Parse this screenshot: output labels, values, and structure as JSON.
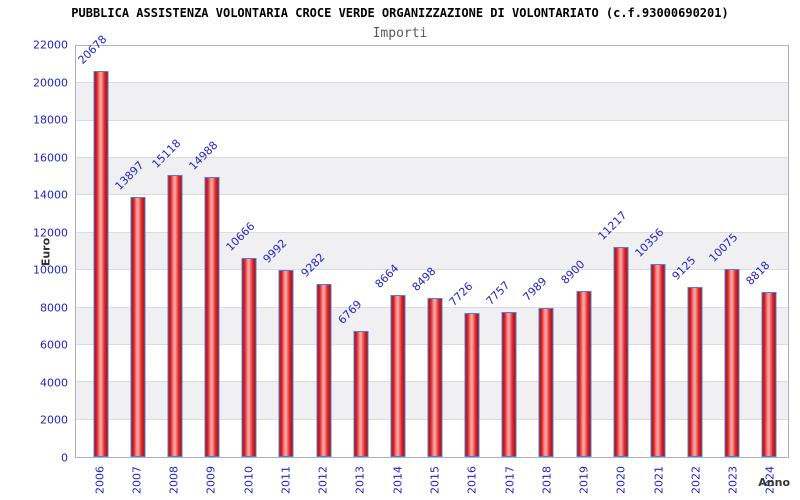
{
  "title": "PUBBLICA ASSISTENZA VOLONTARIA CROCE VERDE ORGANIZZAZIONE DI VOLONTARIATO (c.f.93000690201)",
  "subtitle": "Importi",
  "chart_data": {
    "type": "bar",
    "title": "PUBBLICA ASSISTENZA VOLONTARIA CROCE VERDE ORGANIZZAZIONE DI VOLONTARIATO (c.f.93000690201)",
    "subtitle": "Importi",
    "xlabel": "Anno",
    "ylabel": "Euro",
    "categories": [
      "2006",
      "2007",
      "2008",
      "2009",
      "2010",
      "2011",
      "2012",
      "2013",
      "2014",
      "2015",
      "2016",
      "2017",
      "2018",
      "2019",
      "2020",
      "2021",
      "2022",
      "2023",
      "2024"
    ],
    "values": [
      20678,
      13897,
      15118,
      14988,
      10666,
      9992,
      9282,
      6769,
      8664,
      8498,
      7726,
      7757,
      7989,
      8900,
      11217,
      10356,
      9125,
      10075,
      8818
    ],
    "ylim": [
      0,
      22000
    ],
    "ytick_step": 2000,
    "grid": true,
    "band_fill": true,
    "legend": null,
    "colors": {
      "axis_text": "#2323cc",
      "band": "#f0f0f2",
      "gridline": "#dcdcdc",
      "plot_border": "#aab0c8",
      "bar_border": "#4d7fe3",
      "bar_edge": "#a01212",
      "bar_mid": "#e42222",
      "bar_center": "#f2a2a2",
      "title": "#000000",
      "subtitle": "#5a5a5a",
      "axis_title": "#333333"
    }
  }
}
